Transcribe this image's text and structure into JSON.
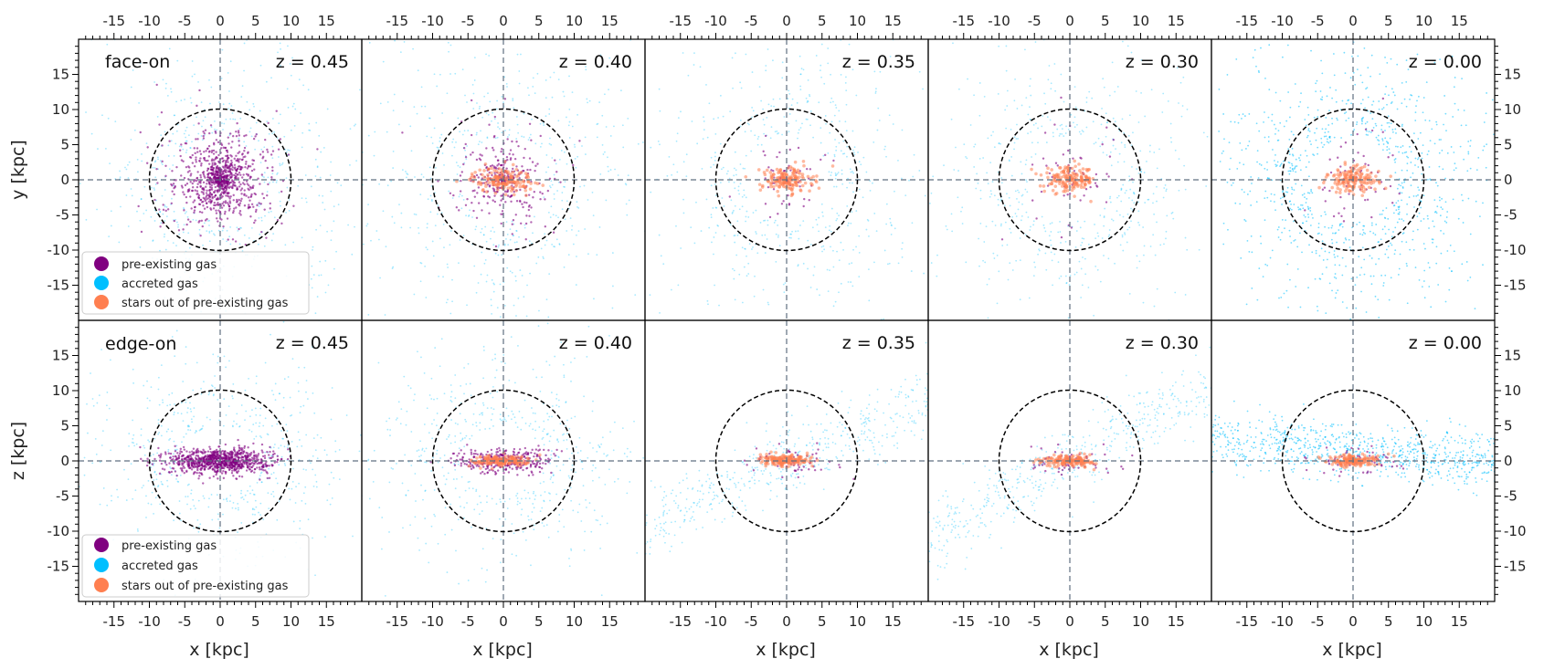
{
  "chart_data": {
    "type": "scatter",
    "description_rows": [
      {
        "projection": "face-on",
        "ylabel": "y [kpc]"
      },
      {
        "projection": "edge-on",
        "ylabel": "z [kpc]"
      }
    ],
    "columns": [
      {
        "redshift_label": "z = 0.45",
        "z_value": 0.45
      },
      {
        "redshift_label": "z = 0.40",
        "z_value": 0.4
      },
      {
        "redshift_label": "z = 0.35",
        "z_value": 0.35
      },
      {
        "redshift_label": "z = 0.30",
        "z_value": 0.3
      },
      {
        "redshift_label": "z = 0.00",
        "z_value": 0.0
      }
    ],
    "xlabel": "x [kpc]",
    "xlim": [
      -20,
      20
    ],
    "ylim": [
      -20,
      20
    ],
    "tick_values": [
      -15,
      -10,
      -5,
      0,
      5,
      10,
      15
    ],
    "tick_labels": [
      "-15",
      "-10",
      "-5",
      "0",
      "5",
      "10",
      "15"
    ],
    "circle_radius": 10,
    "series": [
      {
        "name": "pre-existing gas",
        "color": "#800080"
      },
      {
        "name": "accreted gas",
        "color": "#00bfff"
      },
      {
        "name": "stars out of pre-existing gas",
        "color": "#ff7f50"
      }
    ],
    "legend_location": "lower-left",
    "row_labels": [
      "face-on",
      "edge-on"
    ]
  }
}
